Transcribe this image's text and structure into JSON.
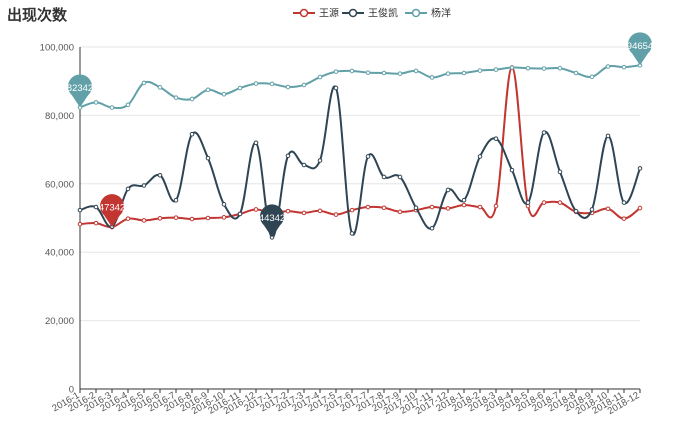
{
  "chart_data": {
    "type": "line",
    "title": "出现次数",
    "xlabel": "",
    "ylabel": "",
    "ylim": [
      0,
      100000
    ],
    "yticks": [
      0,
      20000,
      40000,
      60000,
      80000,
      100000
    ],
    "ytick_labels": [
      "0",
      "20,000",
      "40,000",
      "60,000",
      "80,000",
      "100,000"
    ],
    "grid": true,
    "legend_position": "top-center",
    "x": [
      "2016-1",
      "2016-2",
      "2016-3",
      "2016-4",
      "2016-5",
      "2016-6",
      "2016-7",
      "2016-8",
      "2016-9",
      "2016-10",
      "2016-11",
      "2016-12",
      "2017-1",
      "2017-2",
      "2017-3",
      "2017-4",
      "2017-5",
      "2017-6",
      "2017-7",
      "2017-8",
      "2017-9",
      "2017-10",
      "2017-11",
      "2017-12",
      "2018-1",
      "2018-2",
      "2018-3",
      "2018-4",
      "2018-5",
      "2018-6",
      "2018-7",
      "2018-8",
      "2018-9",
      "2018-10",
      "2018-11",
      "2018-12"
    ],
    "series": [
      {
        "name": "王源",
        "color": "#c23531",
        "values": [
          48200,
          48500,
          47342,
          49800,
          49300,
          49900,
          50100,
          49700,
          50000,
          50200,
          51200,
          52500,
          51500,
          52000,
          51500,
          52100,
          51000,
          52300,
          53200,
          53000,
          51800,
          52300,
          53200,
          52800,
          53800,
          53200,
          53500,
          94021,
          53500,
          54500,
          54500,
          51800,
          51500,
          52700,
          49800,
          52900
        ],
        "pin": {
          "index": 2,
          "label": "47342"
        }
      },
      {
        "name": "王俊凯",
        "color": "#2f4554",
        "values": [
          52300,
          53200,
          47500,
          58500,
          59500,
          62500,
          55200,
          74500,
          67500,
          54000,
          51200,
          72000,
          44342,
          68200,
          65500,
          66800,
          88023,
          45500,
          68000,
          62000,
          62000,
          53000,
          47000,
          58200,
          55200,
          68000,
          73200,
          64000,
          54500,
          75000,
          63500,
          52000,
          52500,
          74000,
          54500,
          64500
        ],
        "pin": {
          "index": 12,
          "label": "44342"
        }
      },
      {
        "name": "杨洋",
        "color": "#61a0a8",
        "values": [
          82342,
          83800,
          82300,
          83100,
          89500,
          88200,
          85200,
          84800,
          87500,
          86200,
          88000,
          89300,
          89200,
          88300,
          88900,
          91200,
          92800,
          93000,
          92500,
          92400,
          92200,
          93000,
          91100,
          92200,
          92400,
          93100,
          93400,
          94000,
          93800,
          93700,
          93800,
          92400,
          91300,
          94300,
          94100,
          94654
        ],
        "pin_first": {
          "index": 0,
          "label": "82342"
        },
        "pin": {
          "index": 35,
          "label": "94654"
        }
      }
    ]
  }
}
